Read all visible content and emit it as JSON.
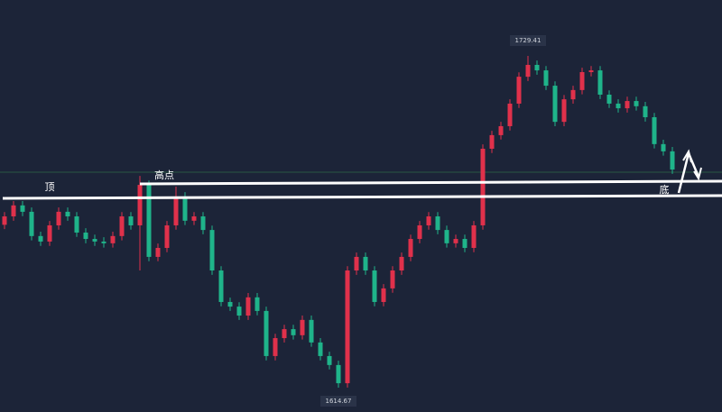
{
  "chart_data": {
    "type": "candlestick",
    "up_color": "#e0314b",
    "down_color": "#1fb48a",
    "ylim": [
      1606.25,
      1748.74
    ],
    "open": [
      1671.0,
      1673.9,
      1677.7,
      1675.5,
      1667.1,
      1665.2,
      1670.8,
      1675.5,
      1673.9,
      1668.3,
      1666.1,
      1665.2,
      1664.6,
      1667.1,
      1673.9,
      1670.8,
      1684.8,
      1659.9,
      1663.0,
      1670.8,
      1680.8,
      1672.4,
      1673.9,
      1669.2,
      1655.2,
      1644.3,
      1642.7,
      1639.6,
      1645.9,
      1641.2,
      1625.6,
      1631.8,
      1634.9,
      1632.8,
      1638.1,
      1630.3,
      1625.6,
      1622.5,
      1616.2,
      1655.2,
      1659.9,
      1655.2,
      1644.3,
      1649.0,
      1655.2,
      1659.9,
      1666.1,
      1670.8,
      1673.9,
      1669.2,
      1664.6,
      1666.1,
      1663.0,
      1670.8,
      1697.3,
      1702.0,
      1705.1,
      1712.9,
      1722.2,
      1726.3,
      1724.4,
      1719.1,
      1706.6,
      1714.4,
      1717.6,
      1723.8,
      1724.4,
      1716.0,
      1712.9,
      1711.3,
      1713.8,
      1712.0,
      1708.2,
      1698.9,
      1696.4
    ],
    "high": [
      1675.4,
      1679.2,
      1679.2,
      1677.0,
      1668.6,
      1672.3,
      1677.0,
      1677.0,
      1675.4,
      1669.8,
      1667.6,
      1666.7,
      1668.6,
      1675.4,
      1675.4,
      1687.9,
      1686.3,
      1664.5,
      1672.3,
      1684.2,
      1682.3,
      1675.4,
      1675.4,
      1670.7,
      1656.7,
      1645.8,
      1644.2,
      1647.4,
      1647.4,
      1642.7,
      1633.3,
      1636.4,
      1636.4,
      1639.6,
      1639.6,
      1631.8,
      1627.1,
      1624.0,
      1656.7,
      1661.4,
      1661.4,
      1656.7,
      1650.5,
      1656.7,
      1661.4,
      1667.6,
      1672.3,
      1675.4,
      1675.4,
      1670.7,
      1667.6,
      1667.6,
      1672.3,
      1698.8,
      1703.5,
      1706.6,
      1714.4,
      1723.7,
      1729.41,
      1727.8,
      1725.9,
      1720.6,
      1715.9,
      1719.1,
      1725.3,
      1725.9,
      1725.9,
      1717.5,
      1714.4,
      1715.3,
      1715.3,
      1713.5,
      1709.7,
      1700.4,
      1697.9
    ],
    "low": [
      1669.5,
      1672.4,
      1674.0,
      1665.6,
      1663.7,
      1663.7,
      1669.3,
      1672.4,
      1666.8,
      1664.6,
      1663.7,
      1663.1,
      1663.1,
      1665.6,
      1669.3,
      1655.2,
      1658.4,
      1658.4,
      1661.5,
      1669.3,
      1670.9,
      1670.9,
      1667.7,
      1653.7,
      1642.8,
      1641.2,
      1638.1,
      1638.1,
      1639.7,
      1624.1,
      1624.1,
      1630.3,
      1631.3,
      1631.3,
      1628.8,
      1624.1,
      1621.0,
      1614.67,
      1614.7,
      1653.7,
      1653.7,
      1642.8,
      1642.8,
      1647.5,
      1653.7,
      1658.4,
      1664.6,
      1669.3,
      1667.7,
      1663.1,
      1663.1,
      1661.5,
      1661.5,
      1669.3,
      1695.8,
      1700.5,
      1703.6,
      1711.4,
      1720.7,
      1722.9,
      1717.6,
      1705.1,
      1705.1,
      1712.9,
      1716.1,
      1722.3,
      1714.5,
      1711.4,
      1709.8,
      1709.8,
      1710.5,
      1706.7,
      1697.4,
      1694.9,
      1688.6
    ],
    "close": [
      1673.9,
      1677.7,
      1675.5,
      1667.1,
      1665.2,
      1670.8,
      1675.5,
      1673.9,
      1668.3,
      1666.1,
      1665.2,
      1664.6,
      1667.1,
      1673.9,
      1670.8,
      1684.8,
      1659.9,
      1663.0,
      1670.8,
      1680.8,
      1672.4,
      1673.9,
      1669.2,
      1655.2,
      1644.3,
      1642.7,
      1639.6,
      1645.9,
      1641.2,
      1625.6,
      1631.8,
      1634.9,
      1632.8,
      1638.1,
      1630.3,
      1625.6,
      1622.5,
      1616.2,
      1655.2,
      1659.9,
      1655.2,
      1644.3,
      1649.0,
      1655.2,
      1659.9,
      1666.1,
      1670.8,
      1673.9,
      1669.2,
      1664.6,
      1666.1,
      1663.0,
      1670.8,
      1697.3,
      1702.0,
      1705.1,
      1712.9,
      1722.2,
      1726.3,
      1724.4,
      1719.1,
      1706.6,
      1714.4,
      1717.6,
      1723.8,
      1724.4,
      1716.0,
      1712.9,
      1711.3,
      1713.8,
      1712.0,
      1708.2,
      1698.9,
      1696.4,
      1690.1
    ],
    "annotations": [
      "顶",
      "高点",
      "底"
    ]
  }
}
